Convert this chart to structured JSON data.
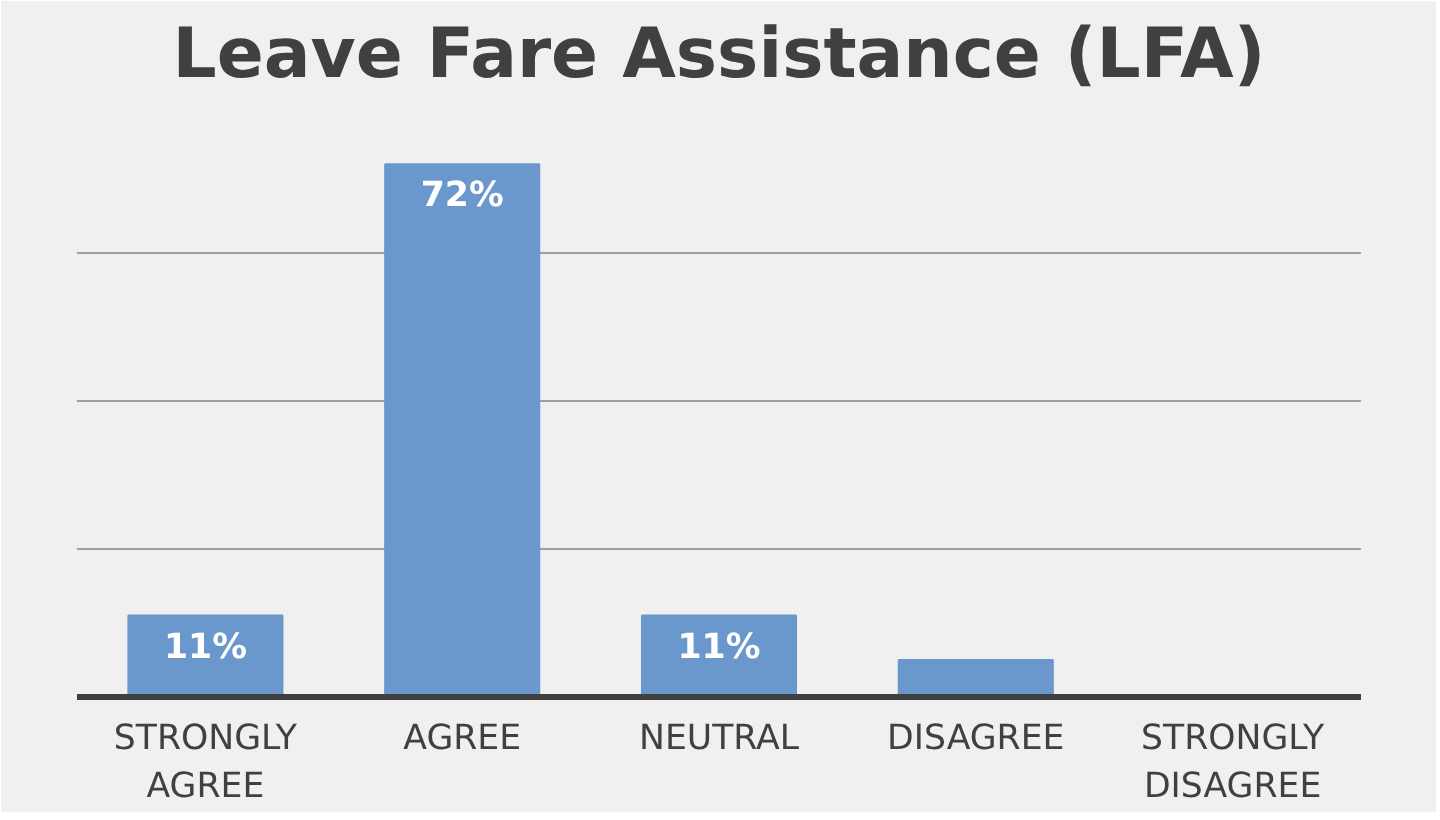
{
  "chart_data": {
    "type": "bar",
    "title": "Leave Fare Assistance (LFA)",
    "categories": [
      "STRONGLY AGREE",
      "AGREE",
      "NEUTRAL",
      "DISAGREE",
      "STRONGLY DISAGREE"
    ],
    "values": [
      11,
      72,
      11,
      5,
      0
    ],
    "value_labels": [
      "11%",
      "72%",
      "11%",
      null,
      null
    ],
    "color": "#6a98cc",
    "ylim": [
      0,
      80
    ],
    "yticks": [
      {
        "value": 20,
        "label": null
      },
      {
        "value": 40,
        "label": null
      },
      {
        "value": 60,
        "label": null
      }
    ],
    "grid": "y",
    "tick_labels": "x"
  }
}
